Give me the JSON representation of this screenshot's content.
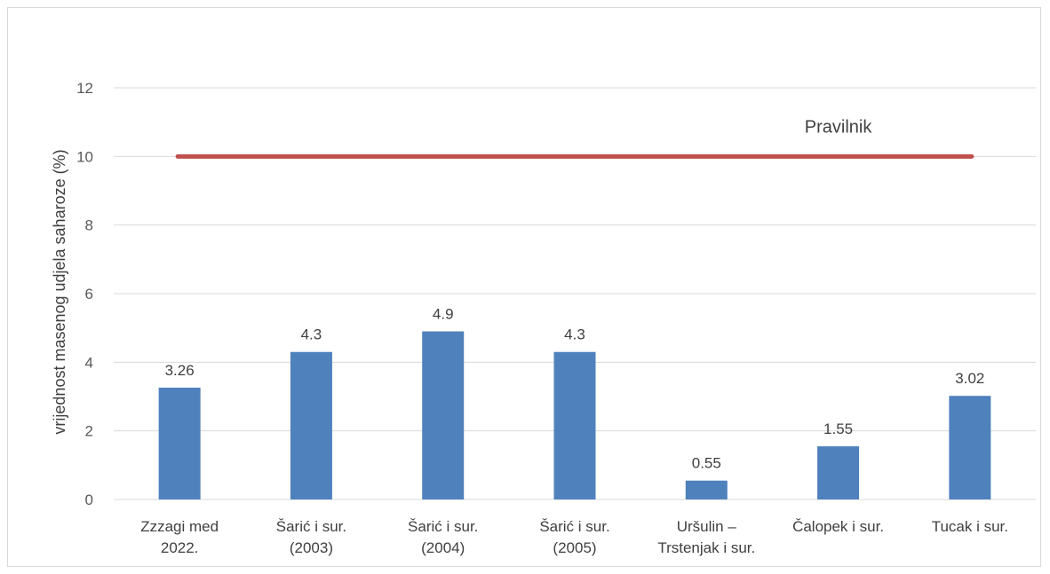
{
  "chart_data": {
    "type": "bar",
    "title": "",
    "xlabel": "",
    "ylabel": "vrijednost masenog udjela saharoze (%)",
    "ylim": [
      0,
      12
    ],
    "yticks": [
      0,
      2,
      4,
      6,
      8,
      10,
      12
    ],
    "grid": true,
    "bar_color": "#4F81BD",
    "categories": [
      [
        "Zzzagi med",
        "2022."
      ],
      [
        "Šarić i sur.",
        "(2003)"
      ],
      [
        "Šarić i sur.",
        "(2004)"
      ],
      [
        "Šarić i sur.",
        "(2005)"
      ],
      [
        "Uršulin –",
        "Trstenjak i sur."
      ],
      [
        "Čalopek i sur."
      ],
      [
        "Tucak i sur."
      ]
    ],
    "values": [
      3.26,
      4.3,
      4.9,
      4.3,
      0.55,
      1.55,
      3.02
    ],
    "data_labels": [
      "3.26",
      "4.3",
      "4.9",
      "4.3",
      "0.55",
      "1.55",
      "3.02"
    ],
    "reference_line": {
      "name": "Pravilnik",
      "value": 10,
      "color": "#C0504D"
    }
  }
}
